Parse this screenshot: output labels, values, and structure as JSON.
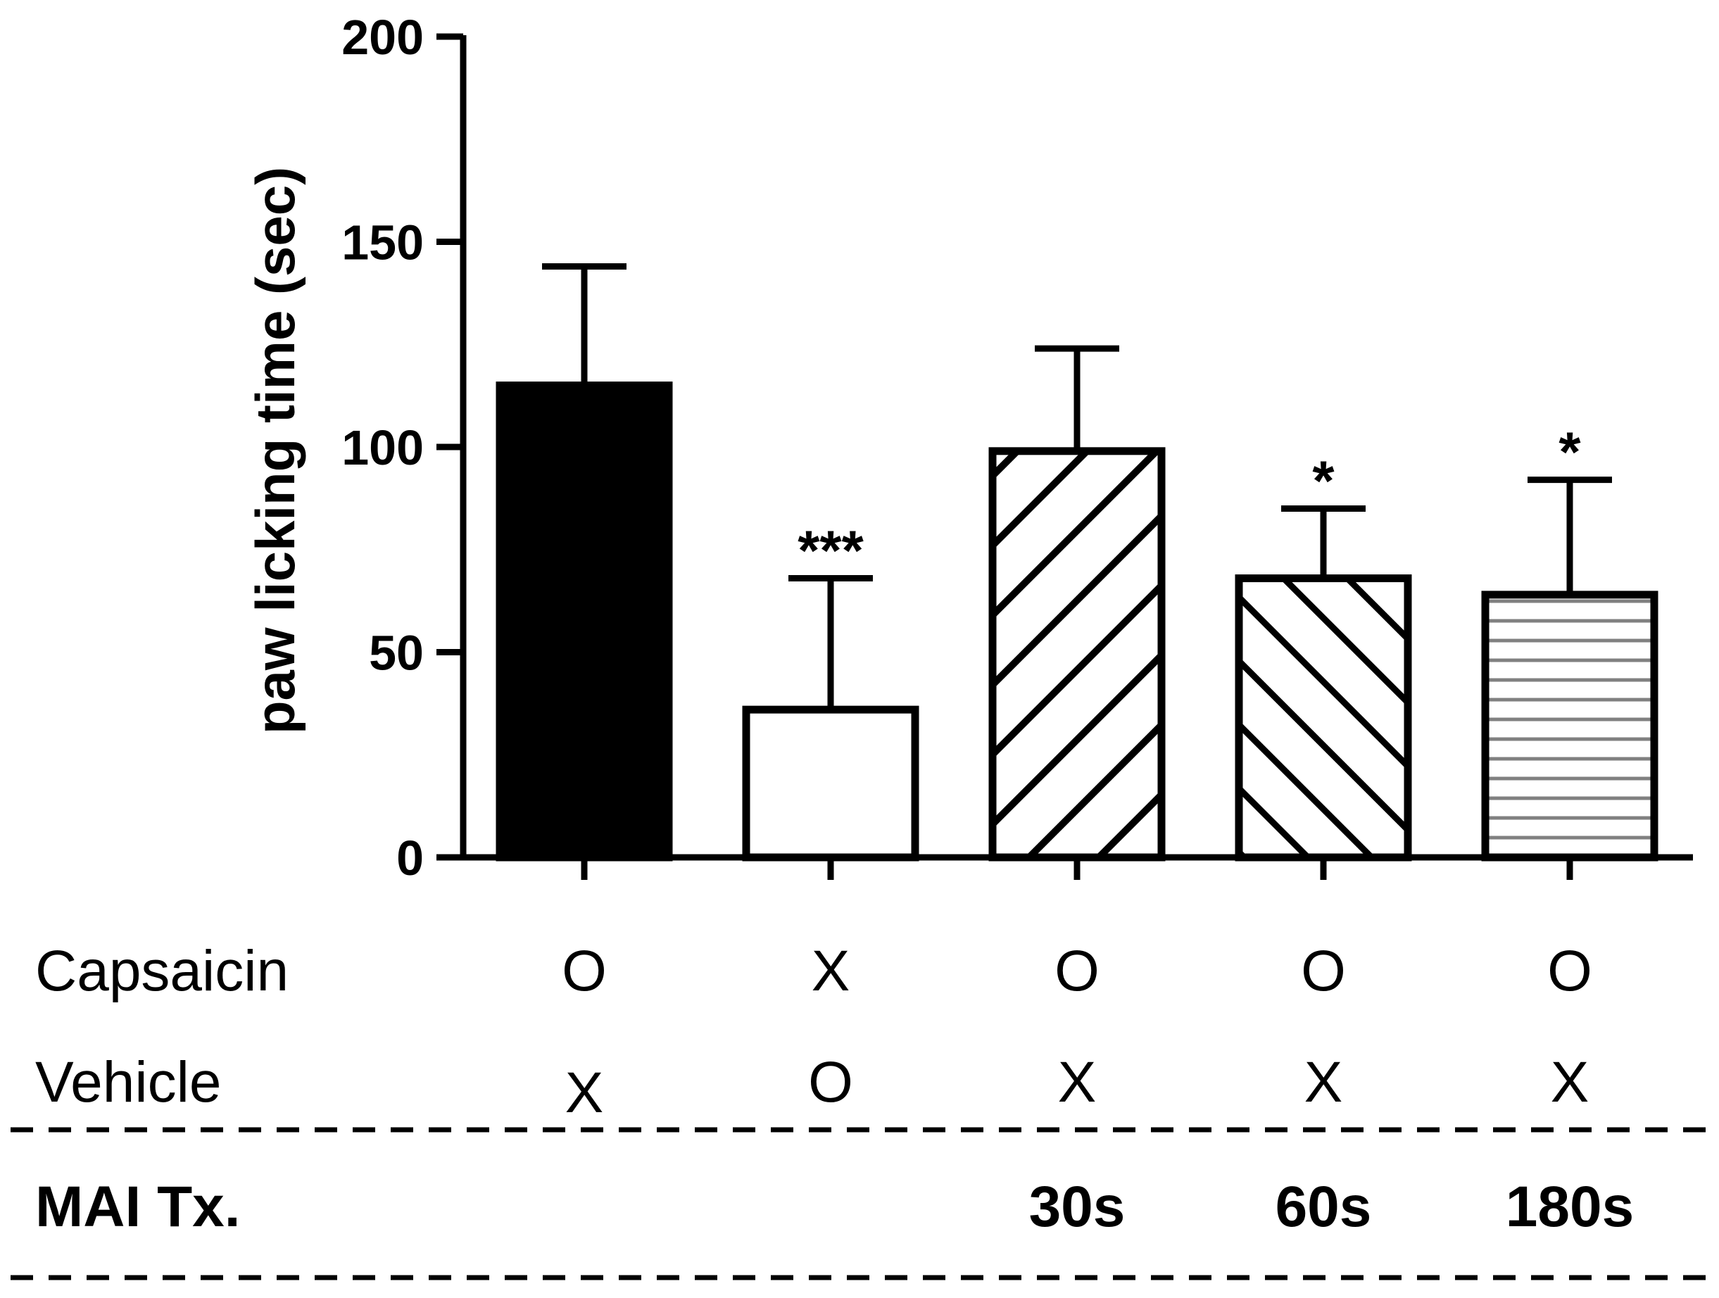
{
  "chart_data": {
    "type": "bar",
    "ylabel": "paw licking time (sec)",
    "ylim": [
      0,
      200
    ],
    "yticks": [
      0,
      50,
      100,
      150,
      200
    ],
    "categories": [
      "Capsaicin O / Vehicle X",
      "Capsaicin X / Vehicle O",
      "MAI Tx. 30s",
      "MAI Tx. 60s",
      "MAI Tx. 180s"
    ],
    "values": [
      115,
      36,
      99,
      68,
      64
    ],
    "error_upper": [
      144,
      68,
      124,
      85,
      92
    ],
    "fills": [
      "solid",
      "empty",
      "hatch-backslash",
      "hatch-slash",
      "hatch-horizontal"
    ],
    "significance": [
      "",
      "***",
      "",
      "*",
      "*"
    ]
  },
  "table": {
    "rows": [
      {
        "label": "Capsaicin",
        "values": [
          "O",
          "X",
          "O",
          "O",
          "O"
        ]
      },
      {
        "label": "Vehicle",
        "values": [
          "X",
          "O",
          "X",
          "X",
          "X"
        ]
      }
    ],
    "treatment": {
      "label": "MAI Tx.",
      "values": [
        "",
        "",
        "30s",
        "60s",
        "180s"
      ]
    }
  },
  "colors": {
    "ink": "#000000",
    "paper": "#ffffff",
    "stripe": "#808080"
  }
}
